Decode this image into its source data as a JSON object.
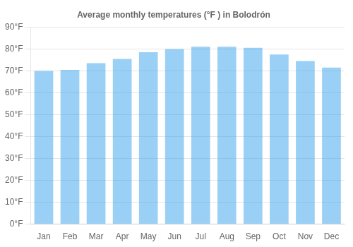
{
  "chart_data": {
    "type": "bar",
    "title": "Average monthly temperatures (°F ) in Bolodrón",
    "categories": [
      "Jan",
      "Feb",
      "Mar",
      "Apr",
      "May",
      "Jun",
      "Jul",
      "Aug",
      "Sep",
      "Oct",
      "Nov",
      "Dec"
    ],
    "values": [
      70,
      70.5,
      73.5,
      75.5,
      78.5,
      80,
      81,
      81,
      80.5,
      77.5,
      74.5,
      71.5
    ],
    "ylim": [
      0,
      90
    ],
    "yticks": [
      {
        "value": 0,
        "label": "0°F"
      },
      {
        "value": 10,
        "label": "10°F"
      },
      {
        "value": 20,
        "label": "20°F"
      },
      {
        "value": 30,
        "label": "30°F"
      },
      {
        "value": 40,
        "label": "40°F"
      },
      {
        "value": 50,
        "label": "50°F"
      },
      {
        "value": 60,
        "label": "60°F"
      },
      {
        "value": 70,
        "label": "70°F"
      },
      {
        "value": 80,
        "label": "80°F"
      },
      {
        "value": 90,
        "label": "90°F"
      }
    ],
    "grid": true
  }
}
